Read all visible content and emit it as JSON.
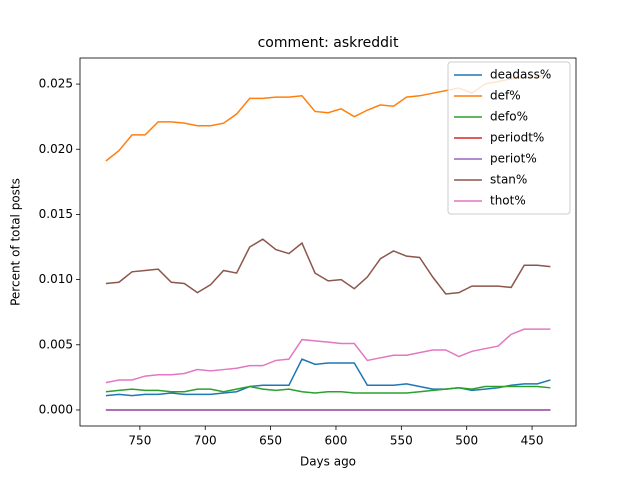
{
  "chart_data": {
    "type": "line",
    "title": "comment: askreddit",
    "xlabel": "Days ago",
    "ylabel": "Percent of total posts",
    "x": [
      776,
      766,
      756,
      746,
      736,
      726,
      716,
      706,
      696,
      686,
      676,
      666,
      656,
      646,
      636,
      626,
      616,
      606,
      596,
      586,
      576,
      566,
      556,
      546,
      536,
      526,
      516,
      506,
      496,
      486,
      476,
      466,
      456,
      446,
      436
    ],
    "xlim": [
      795.8,
      416.4
    ],
    "xticks": [
      750,
      700,
      650,
      600,
      550,
      500,
      450
    ],
    "ylim": [
      -0.00123,
      0.027
    ],
    "yticks": [
      {
        "value": 0,
        "label": "0.000"
      },
      {
        "value": 0.005,
        "label": "0.005"
      },
      {
        "value": 0.01,
        "label": "0.010"
      },
      {
        "value": 0.015,
        "label": "0.015"
      },
      {
        "value": 0.02,
        "label": "0.020"
      },
      {
        "value": 0.025,
        "label": "0.025"
      }
    ],
    "legend": "upper right",
    "series": [
      {
        "name": "deadass%",
        "color": "#1f77b4",
        "values": [
          0.0011,
          0.0012,
          0.0011,
          0.0012,
          0.0012,
          0.0013,
          0.0012,
          0.0012,
          0.0012,
          0.0013,
          0.0014,
          0.0018,
          0.0019,
          0.0019,
          0.0019,
          0.0039,
          0.0035,
          0.0036,
          0.0036,
          0.0036,
          0.0019,
          0.0019,
          0.0019,
          0.002,
          0.0018,
          0.0016,
          0.0016,
          0.0017,
          0.0015,
          0.0016,
          0.0017,
          0.0019,
          0.002,
          0.002,
          0.0023
        ]
      },
      {
        "name": "def%",
        "color": "#ff7f0e",
        "values": [
          0.0191,
          0.0199,
          0.0211,
          0.0211,
          0.0221,
          0.0221,
          0.022,
          0.0218,
          0.0218,
          0.022,
          0.0227,
          0.0239,
          0.0239,
          0.024,
          0.024,
          0.0241,
          0.0229,
          0.0228,
          0.0231,
          0.0225,
          0.023,
          0.0234,
          0.0233,
          0.024,
          0.0241,
          0.0243,
          0.0245,
          0.0247,
          0.0243,
          0.025,
          0.0252,
          0.0254,
          0.0255,
          0.0256,
          0.0257
        ]
      },
      {
        "name": "defo%",
        "color": "#2ca02c",
        "values": [
          0.0014,
          0.0015,
          0.0016,
          0.0015,
          0.0015,
          0.0014,
          0.0014,
          0.0016,
          0.0016,
          0.0014,
          0.0016,
          0.0018,
          0.0016,
          0.0015,
          0.0016,
          0.0014,
          0.0013,
          0.0014,
          0.0014,
          0.0013,
          0.0013,
          0.0013,
          0.0013,
          0.0013,
          0.0014,
          0.0015,
          0.0016,
          0.0017,
          0.0016,
          0.0018,
          0.0018,
          0.0018,
          0.0018,
          0.0018,
          0.0017
        ]
      },
      {
        "name": "periodt%",
        "color": "#d62728",
        "values": [
          0,
          0,
          0,
          0,
          0,
          0,
          0,
          0,
          0,
          0,
          0,
          0,
          0,
          0,
          0,
          0,
          0,
          0,
          0,
          0,
          0,
          0,
          0,
          0,
          0,
          0,
          0,
          0,
          0,
          0,
          0,
          0,
          0,
          0,
          0
        ]
      },
      {
        "name": "periot%",
        "color": "#9467bd",
        "values": [
          0,
          0,
          0,
          0,
          0,
          0,
          0,
          0,
          0,
          0,
          0,
          0,
          0,
          0,
          0,
          0,
          0,
          0,
          0,
          0,
          0,
          0,
          0,
          0,
          0,
          0,
          0,
          0,
          0,
          0,
          0,
          0,
          0,
          0,
          0
        ]
      },
      {
        "name": "stan%",
        "color": "#8c564b",
        "values": [
          0.0097,
          0.0098,
          0.0106,
          0.0107,
          0.0108,
          0.0098,
          0.0097,
          0.009,
          0.0096,
          0.0107,
          0.0105,
          0.0125,
          0.0131,
          0.0123,
          0.012,
          0.0128,
          0.0105,
          0.0099,
          0.01,
          0.0093,
          0.0102,
          0.0116,
          0.0122,
          0.0118,
          0.0117,
          0.0102,
          0.0089,
          0.009,
          0.0095,
          0.0095,
          0.0095,
          0.0094,
          0.0111,
          0.0111,
          0.011
        ]
      },
      {
        "name": "thot%",
        "color": "#e377c2",
        "values": [
          0.0021,
          0.0023,
          0.0023,
          0.0026,
          0.0027,
          0.0027,
          0.0028,
          0.0031,
          0.003,
          0.0031,
          0.0032,
          0.0034,
          0.0034,
          0.0038,
          0.0039,
          0.0054,
          0.0053,
          0.0052,
          0.0051,
          0.0051,
          0.0038,
          0.004,
          0.0042,
          0.0042,
          0.0044,
          0.0046,
          0.0046,
          0.0041,
          0.0045,
          0.0047,
          0.0049,
          0.0058,
          0.0062,
          0.0062,
          0.0062
        ]
      }
    ]
  }
}
